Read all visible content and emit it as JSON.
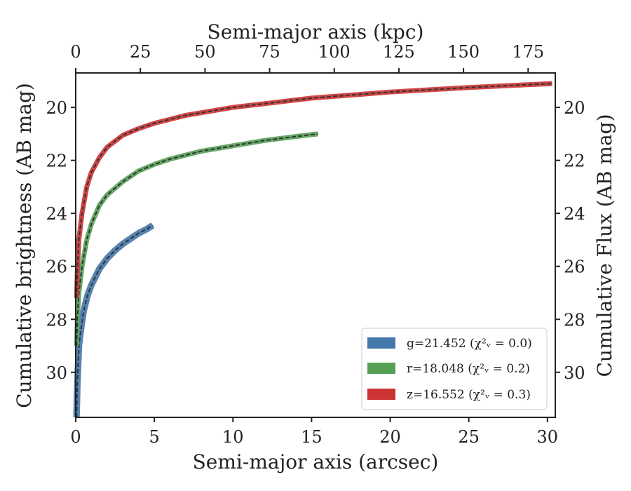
{
  "chart_data": {
    "type": "line",
    "xlabel": "Semi-major axis (arcsec)",
    "ylabel": "Cumulative brightness (AB mag)",
    "x2label": "Semi-major axis (kpc)",
    "y2label": "Cumulative Flux (AB mag)",
    "xlim": [
      0,
      30.5
    ],
    "ylim": [
      31.7,
      18.7
    ],
    "x2lim": [
      0,
      185.5
    ],
    "y_inverted": true,
    "xticks": [
      0,
      5,
      10,
      15,
      20,
      25,
      30
    ],
    "yticks": [
      20,
      22,
      24,
      26,
      28,
      30
    ],
    "x2ticks": [
      0,
      25,
      50,
      75,
      100,
      125,
      150,
      175
    ],
    "grid": false,
    "legend_position": "lower-right",
    "series": [
      {
        "name": "g=21.452 (χ²ᵥ = 0.0)",
        "color": "#4477aa",
        "band_width": 4,
        "points": [
          [
            0.05,
            31.7
          ],
          [
            0.1,
            30.5
          ],
          [
            0.2,
            29.0
          ],
          [
            0.35,
            28.3
          ],
          [
            0.5,
            27.7
          ],
          [
            0.75,
            27.1
          ],
          [
            1.0,
            26.7
          ],
          [
            1.5,
            26.1
          ],
          [
            2.0,
            25.7
          ],
          [
            2.5,
            25.4
          ],
          [
            3.0,
            25.15
          ],
          [
            3.5,
            24.95
          ],
          [
            4.0,
            24.75
          ],
          [
            4.5,
            24.6
          ],
          [
            4.9,
            24.45
          ]
        ]
      },
      {
        "name": "r=18.048 (χ²ᵥ = 0.2)",
        "color": "#55a055",
        "band_width": 2.5,
        "points": [
          [
            0.05,
            29.0
          ],
          [
            0.1,
            28.0
          ],
          [
            0.2,
            27.0
          ],
          [
            0.4,
            26.0
          ],
          [
            0.7,
            25.0
          ],
          [
            1.0,
            24.4
          ],
          [
            1.5,
            23.7
          ],
          [
            2.0,
            23.3
          ],
          [
            3.0,
            22.8
          ],
          [
            4.0,
            22.4
          ],
          [
            5.0,
            22.15
          ],
          [
            6.0,
            21.95
          ],
          [
            8.0,
            21.65
          ],
          [
            10.0,
            21.45
          ],
          [
            12.0,
            21.25
          ],
          [
            14.0,
            21.1
          ],
          [
            15.4,
            21.0
          ]
        ]
      },
      {
        "name": "z=16.552 (χ²ᵥ = 0.3)",
        "color": "#cc3333",
        "band_width": 2.5,
        "points": [
          [
            0.05,
            27.2
          ],
          [
            0.1,
            26.2
          ],
          [
            0.2,
            25.0
          ],
          [
            0.4,
            24.0
          ],
          [
            0.7,
            23.0
          ],
          [
            1.0,
            22.45
          ],
          [
            1.5,
            21.9
          ],
          [
            2.0,
            21.5
          ],
          [
            3.0,
            21.05
          ],
          [
            4.0,
            20.8
          ],
          [
            5.0,
            20.6
          ],
          [
            7.0,
            20.3
          ],
          [
            10.0,
            20.0
          ],
          [
            15.0,
            19.65
          ],
          [
            20.0,
            19.42
          ],
          [
            25.0,
            19.25
          ],
          [
            30.3,
            19.1
          ]
        ]
      }
    ]
  }
}
